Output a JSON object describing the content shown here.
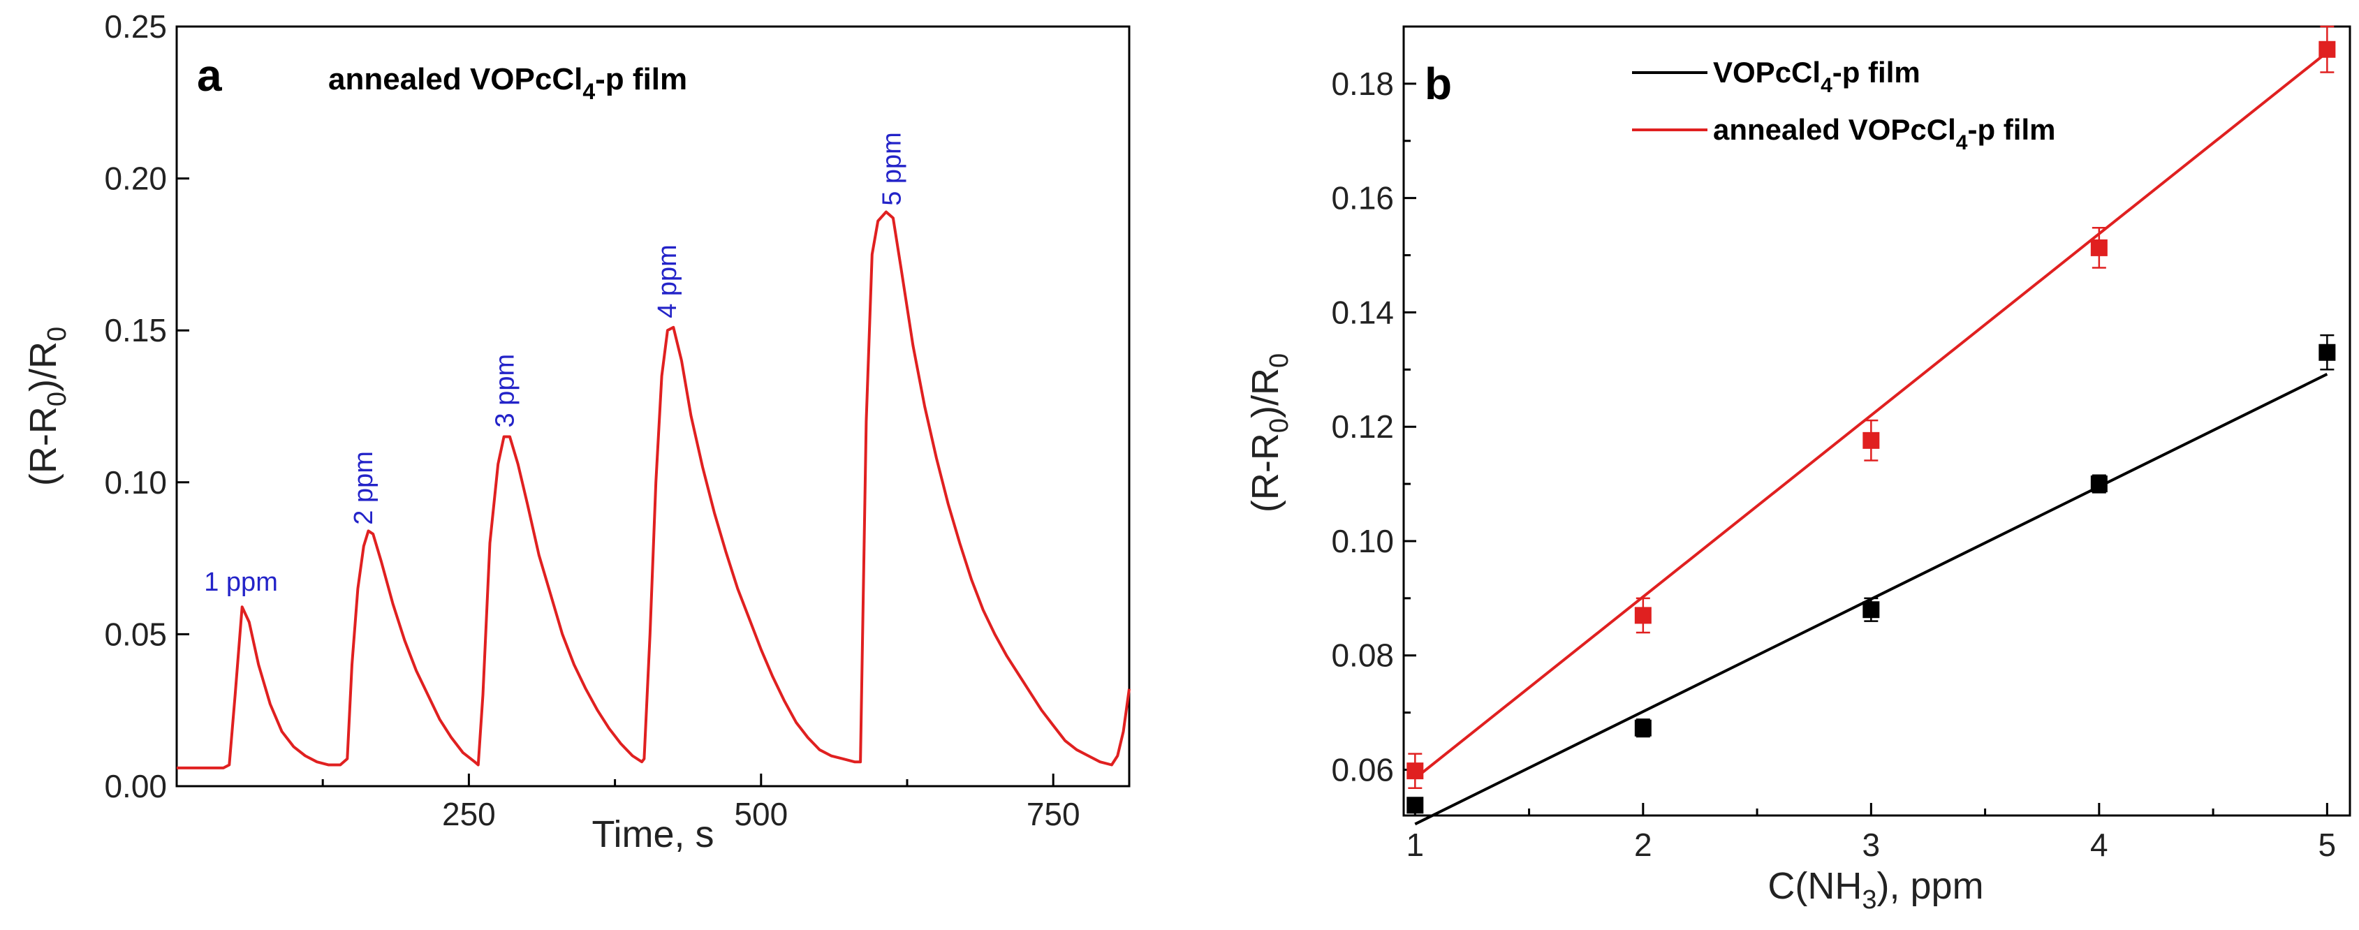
{
  "chart_data": [
    {
      "panel": "a",
      "type": "line",
      "title": "annealed VOPcCl4-p film",
      "xlabel": "Time, s",
      "ylabel": "(R-R0)/R0",
      "xlim": [
        0,
        815
      ],
      "ylim": [
        0,
        0.25
      ],
      "x_ticks": [
        250,
        500,
        750
      ],
      "y_ticks": [
        0.0,
        0.05,
        0.1,
        0.15,
        0.2,
        0.25
      ],
      "y_tick_labels": [
        "0.00",
        "0.05",
        "0.10",
        "0.15",
        "0.20",
        "0.25"
      ],
      "series": [
        {
          "name": "annealed VOPcCl4-p film",
          "color": "#e02020",
          "x": [
            0,
            40,
            45,
            50,
            56,
            62,
            70,
            80,
            90,
            100,
            110,
            120,
            130,
            140,
            146,
            150,
            155,
            160,
            164,
            168,
            175,
            185,
            195,
            205,
            215,
            225,
            235,
            245,
            255,
            258,
            262,
            268,
            275,
            280,
            285,
            292,
            300,
            310,
            320,
            330,
            340,
            350,
            360,
            370,
            380,
            390,
            398,
            400,
            405,
            410,
            415,
            420,
            425,
            432,
            440,
            450,
            460,
            470,
            480,
            490,
            500,
            510,
            520,
            530,
            540,
            550,
            560,
            570,
            580,
            585,
            590,
            595,
            600,
            607,
            613,
            620,
            630,
            640,
            650,
            660,
            670,
            680,
            690,
            700,
            710,
            720,
            730,
            740,
            750,
            760,
            770,
            780,
            790,
            800,
            805,
            810,
            815
          ],
          "y": [
            0.006,
            0.006,
            0.007,
            0.03,
            0.059,
            0.054,
            0.04,
            0.027,
            0.018,
            0.013,
            0.01,
            0.008,
            0.007,
            0.007,
            0.009,
            0.04,
            0.065,
            0.079,
            0.084,
            0.083,
            0.074,
            0.06,
            0.048,
            0.038,
            0.03,
            0.022,
            0.016,
            0.011,
            0.008,
            0.007,
            0.03,
            0.08,
            0.106,
            0.115,
            0.115,
            0.106,
            0.093,
            0.076,
            0.063,
            0.05,
            0.04,
            0.032,
            0.025,
            0.019,
            0.014,
            0.01,
            0.008,
            0.009,
            0.05,
            0.1,
            0.135,
            0.15,
            0.151,
            0.14,
            0.122,
            0.105,
            0.09,
            0.077,
            0.065,
            0.055,
            0.045,
            0.036,
            0.028,
            0.021,
            0.016,
            0.012,
            0.01,
            0.009,
            0.008,
            0.008,
            0.12,
            0.175,
            0.186,
            0.189,
            0.187,
            0.17,
            0.145,
            0.125,
            0.108,
            0.093,
            0.08,
            0.068,
            0.058,
            0.05,
            0.043,
            0.037,
            0.031,
            0.025,
            0.02,
            0.015,
            0.012,
            0.01,
            0.008,
            0.007,
            0.01,
            0.018,
            0.032
          ]
        }
      ],
      "annotations": [
        {
          "text": "1 ppm",
          "x": 55,
          "y": 0.062
        },
        {
          "text": "2 ppm",
          "x": 160,
          "y": 0.086
        },
        {
          "text": "3 ppm",
          "x": 281,
          "y": 0.118
        },
        {
          "text": "4 ppm",
          "x": 420,
          "y": 0.154
        },
        {
          "text": "5 ppm",
          "x": 612,
          "y": 0.191
        }
      ]
    },
    {
      "panel": "b",
      "type": "scatter",
      "title": "",
      "xlabel": "C(NH3), ppm",
      "ylabel": "(R-R0)/R0",
      "xlim": [
        0.95,
        5.1
      ],
      "ylim": [
        0.052,
        0.19
      ],
      "x_ticks": [
        1,
        2,
        3,
        4,
        5
      ],
      "x_minor_ticks": [
        1.5,
        2.5,
        3.5,
        4.5
      ],
      "y_ticks": [
        0.06,
        0.08,
        0.1,
        0.12,
        0.14,
        0.16,
        0.18
      ],
      "y_tick_labels": [
        "0.06",
        "0.08",
        "0.10",
        "0.12",
        "0.14",
        "0.16",
        "0.18"
      ],
      "legend_position": "top-left",
      "series": [
        {
          "name": "VOPcCl4-p film",
          "color": "#000000",
          "x": [
            1,
            2,
            3,
            4,
            5
          ],
          "y": [
            0.0538,
            0.0673,
            0.088,
            0.11,
            0.133
          ],
          "error": [
            0.001,
            0.0015,
            0.002,
            0.0015,
            0.003
          ],
          "fit_line": {
            "x": [
              1,
              5
            ],
            "y": [
              0.0505,
              0.1292
            ]
          }
        },
        {
          "name": "annealed VOPcCl4-p film",
          "color": "#e02020",
          "x": [
            1,
            2,
            3,
            4,
            5
          ],
          "y": [
            0.0598,
            0.087,
            0.1176,
            0.1513,
            0.186
          ],
          "error": [
            0.003,
            0.003,
            0.0035,
            0.0035,
            0.004
          ],
          "fit_line": {
            "x": [
              1,
              5
            ],
            "y": [
              0.0585,
              0.1855
            ]
          }
        }
      ]
    }
  ],
  "text": {
    "panel_a_letter": "a",
    "panel_b_letter": "b",
    "inset_title_main": "annealed VOPcCl",
    "inset_title_sub": "4",
    "inset_title_suffix": "-p film",
    "ylabel_pre": "(R-R",
    "ylabel_sub": "0",
    "ylabel_mid": ")/R",
    "ylabel_sub2": "0",
    "xlabel_a": "Time, s",
    "xlabel_b_pre": "C(NH",
    "xlabel_b_sub": "3",
    "xlabel_b_post": "), ppm",
    "legend1_pre": "VOPcCl",
    "legend1_sub": "4",
    "legend1_post": "-p film",
    "legend2_pre": "annealed VOPcCl",
    "legend2_sub": "4",
    "legend2_post": "-p film"
  }
}
